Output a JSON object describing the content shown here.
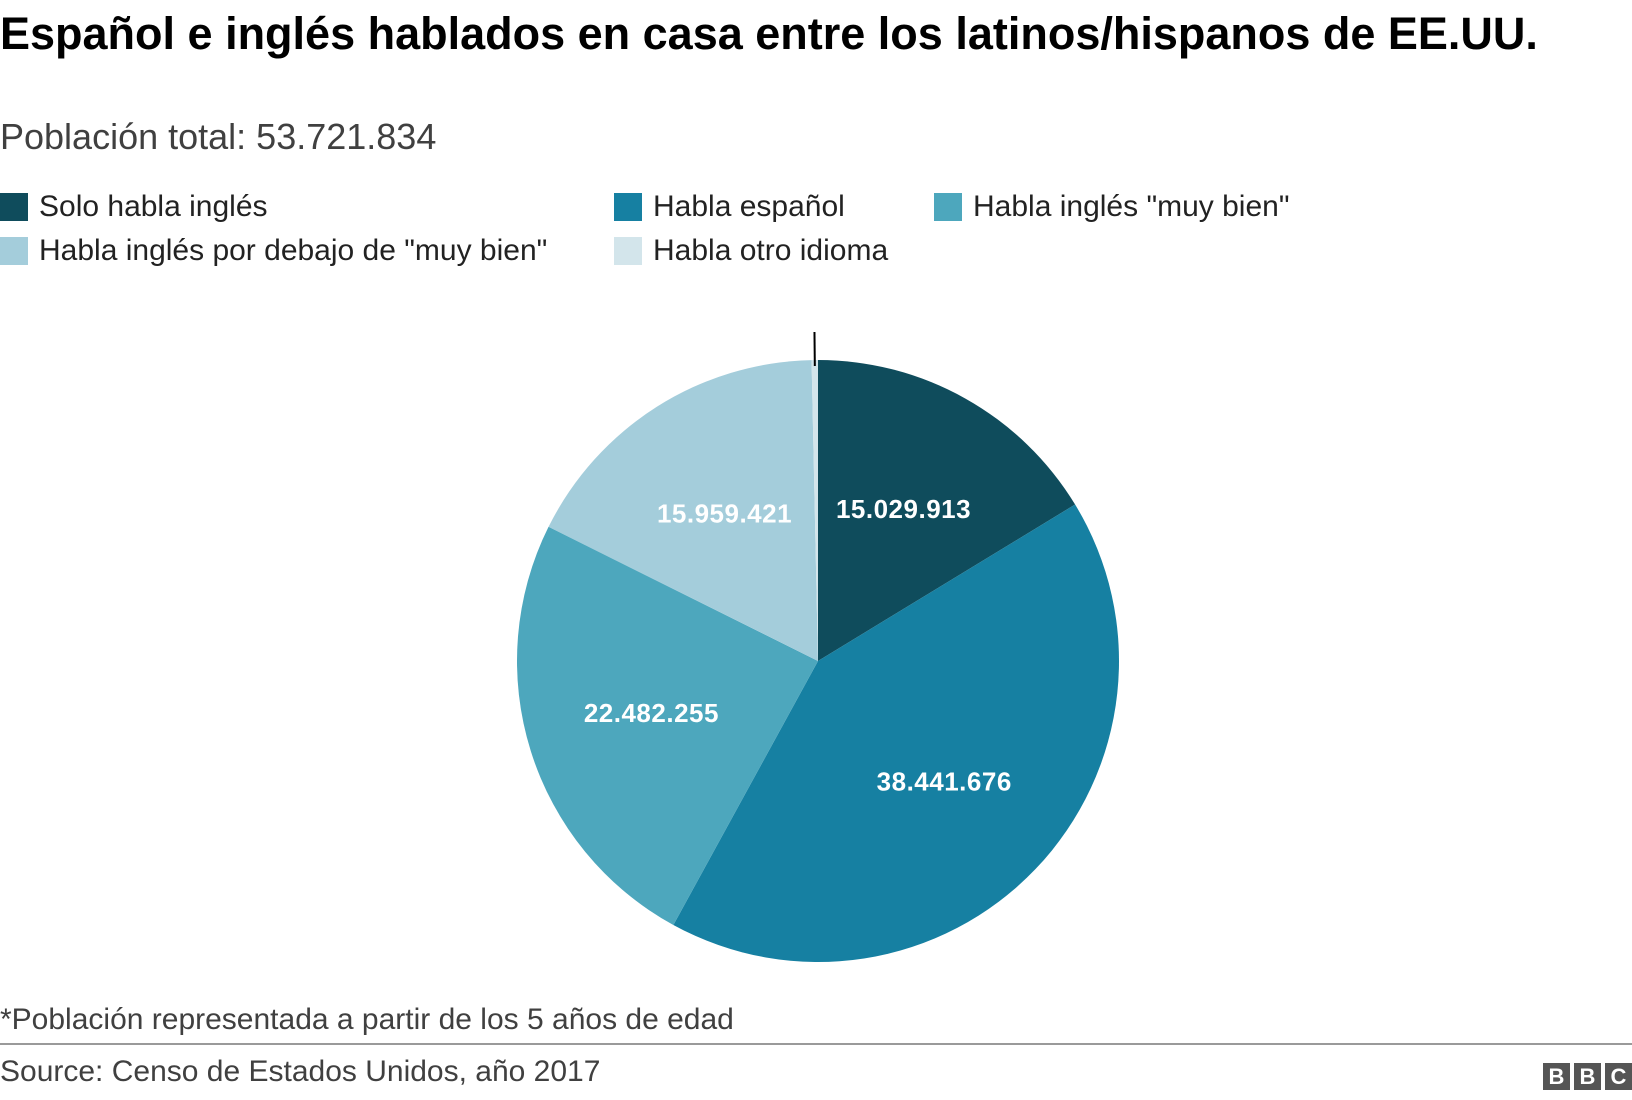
{
  "chart_data": {
    "type": "pie",
    "title": "Español e inglés hablados en casa entre los latinos/hispanos de EE.UU.",
    "subtitle": "Población total: 53.721.834",
    "categories": [
      "Solo habla inglés",
      "Habla español",
      "Habla inglés \"muy bien\"",
      "Habla inglés por debajo de \"muy bien\"",
      "Habla otro idioma"
    ],
    "values": [
      15029913,
      38441676,
      22482255,
      15959421,
      315000
    ],
    "value_labels": [
      "15.029.913",
      "38.441.676",
      "22.482.255",
      "15.959.421",
      ""
    ],
    "colors": [
      "#0f4c5c",
      "#1680a2",
      "#4da7bd",
      "#a4cddb",
      "#d3e5eb"
    ],
    "start_angle_deg": 0,
    "direction": "clockwise",
    "legend_position": "top",
    "footnote": "*Población representada a partir de los 5 años de edad",
    "source": "Source: Censo de Estados Unidos, año 2017"
  },
  "branding": {
    "logo_letters": [
      "B",
      "B",
      "C"
    ]
  }
}
